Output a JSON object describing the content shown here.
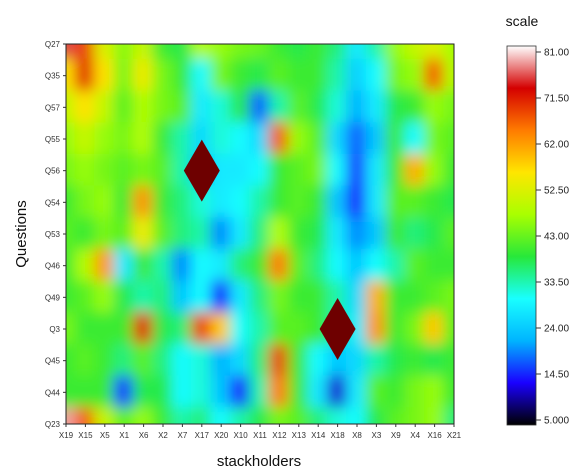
{
  "chart_data": {
    "type": "heatmap",
    "title": "",
    "xlabel": "stackholders",
    "ylabel": "Questions",
    "x_categories": [
      "X19",
      "X15",
      "X5",
      "X1",
      "X6",
      "X2",
      "X7",
      "X17",
      "X20",
      "X10",
      "X11",
      "X12",
      "X13",
      "X14",
      "X18",
      "X8",
      "X3",
      "X9",
      "X4",
      "X16",
      "X21"
    ],
    "y_categories": [
      "Q27",
      "Q35",
      "Q57",
      "Q55",
      "Q56",
      "Q54",
      "Q53",
      "Q46",
      "Q49",
      "Q3",
      "Q45",
      "Q44",
      "Q23"
    ],
    "colorbar": {
      "title": "scale",
      "ticks": [
        "81.00",
        "71.50",
        "62.00",
        "52.50",
        "43.00",
        "33.50",
        "24.00",
        "14.50",
        "5.000"
      ],
      "range": [
        5,
        81
      ],
      "colors": [
        "#000000",
        "#1a00ff",
        "#00b4ff",
        "#19ffff",
        "#27e83a",
        "#a9ff00",
        "#ffe600",
        "#ff7b00",
        "#d40000",
        "#ffffff"
      ]
    },
    "values": [
      [
        75,
        68,
        52,
        45,
        50,
        40,
        38,
        48,
        46,
        44,
        43,
        40,
        38,
        40,
        36,
        28,
        34,
        46,
        50,
        52,
        47
      ],
      [
        56,
        70,
        56,
        44,
        54,
        44,
        40,
        30,
        44,
        40,
        38,
        42,
        40,
        40,
        34,
        25,
        30,
        44,
        46,
        66,
        48
      ],
      [
        50,
        56,
        50,
        42,
        48,
        44,
        42,
        28,
        32,
        38,
        18,
        34,
        42,
        38,
        32,
        22,
        28,
        38,
        40,
        46,
        44
      ],
      [
        46,
        50,
        46,
        44,
        48,
        40,
        34,
        26,
        32,
        30,
        26,
        66,
        46,
        42,
        26,
        18,
        24,
        40,
        30,
        44,
        42
      ],
      [
        44,
        46,
        44,
        42,
        44,
        42,
        34,
        24,
        28,
        28,
        30,
        40,
        42,
        44,
        30,
        16,
        28,
        40,
        60,
        46,
        40
      ],
      [
        40,
        44,
        46,
        40,
        62,
        40,
        36,
        32,
        28,
        30,
        34,
        40,
        42,
        40,
        24,
        14,
        28,
        42,
        42,
        40,
        38
      ],
      [
        42,
        40,
        44,
        42,
        54,
        42,
        36,
        34,
        20,
        28,
        36,
        48,
        40,
        38,
        28,
        20,
        24,
        40,
        36,
        38,
        42
      ],
      [
        40,
        48,
        62,
        28,
        40,
        34,
        20,
        30,
        28,
        36,
        40,
        64,
        42,
        36,
        30,
        24,
        30,
        34,
        42,
        40,
        40
      ],
      [
        40,
        42,
        46,
        38,
        34,
        36,
        24,
        30,
        14,
        28,
        36,
        44,
        40,
        40,
        34,
        26,
        60,
        40,
        40,
        42,
        44
      ],
      [
        44,
        40,
        40,
        40,
        70,
        38,
        36,
        68,
        58,
        30,
        34,
        42,
        42,
        40,
        34,
        28,
        62,
        40,
        44,
        58,
        42
      ],
      [
        40,
        42,
        40,
        36,
        42,
        36,
        30,
        32,
        22,
        26,
        36,
        68,
        40,
        30,
        24,
        26,
        34,
        38,
        40,
        38,
        40
      ],
      [
        40,
        40,
        40,
        16,
        38,
        38,
        30,
        32,
        24,
        14,
        34,
        64,
        40,
        28,
        12,
        28,
        42,
        40,
        44,
        46,
        40
      ],
      [
        78,
        66,
        50,
        42,
        46,
        40,
        34,
        36,
        30,
        34,
        38,
        44,
        42,
        36,
        32,
        30,
        38,
        42,
        44,
        46,
        36
      ]
    ],
    "markers": [
      {
        "shape": "diamond",
        "x": "X17",
        "y": "Q56",
        "color": "#6e0000"
      },
      {
        "shape": "diamond",
        "x": "X18",
        "y": "Q3",
        "color": "#6e0000"
      }
    ],
    "grid": false,
    "legend": "colorbar-right"
  }
}
